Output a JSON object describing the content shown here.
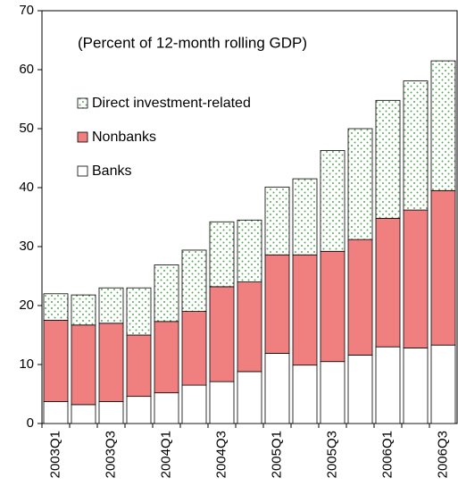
{
  "chart_data": {
    "type": "stacked_bar",
    "subtitle": "(Percent of 12-month rolling GDP)",
    "categories": [
      "2003Q1",
      null,
      "2003Q3",
      null,
      "2004Q1",
      null,
      "2004Q3",
      null,
      "2005Q1",
      null,
      "2005Q3",
      null,
      "2006Q1",
      null,
      "2006Q3"
    ],
    "series": [
      {
        "name": "Banks",
        "color": "#ffffff",
        "values": [
          3.7,
          3.2,
          3.7,
          4.6,
          5.2,
          6.5,
          7.1,
          8.8,
          11.9,
          9.9,
          10.5,
          11.6,
          13.0,
          12.8,
          13.3
        ]
      },
      {
        "name": "Nonbanks",
        "color": "#f08080",
        "values": [
          13.8,
          13.5,
          13.3,
          10.4,
          12.1,
          12.5,
          16.1,
          15.2,
          16.7,
          18.7,
          18.7,
          19.6,
          21.8,
          23.4,
          26.2
        ]
      },
      {
        "name": "Direct investment-related",
        "color": "#5aaa5a",
        "hatch": "dots",
        "values": [
          4.5,
          5.1,
          6.0,
          8.0,
          9.6,
          10.4,
          11.0,
          10.5,
          11.5,
          12.9,
          17.1,
          18.8,
          20.0,
          21.9,
          22.0
        ]
      }
    ],
    "ylim": [
      0,
      70
    ],
    "yticks": [
      0,
      10,
      20,
      30,
      40,
      50,
      60,
      70
    ]
  }
}
